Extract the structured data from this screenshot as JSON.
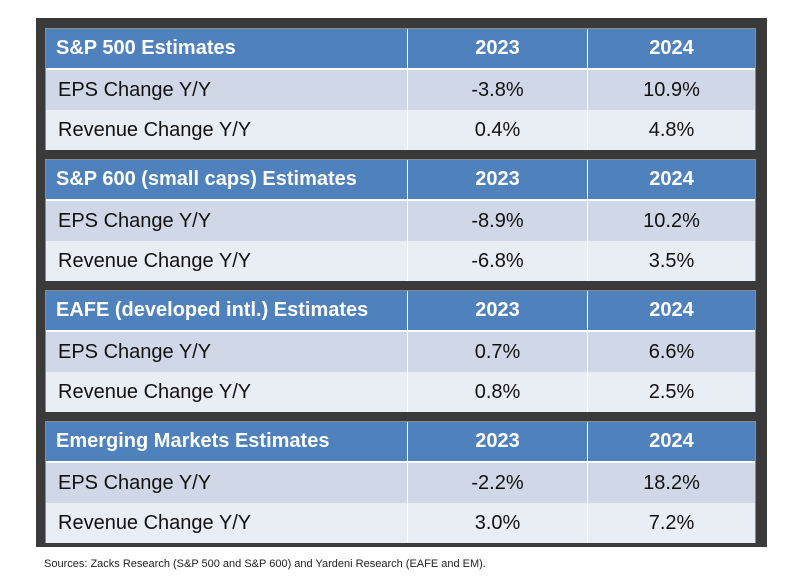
{
  "chart_data": {
    "type": "table",
    "columns": [
      "2023",
      "2024"
    ],
    "tables": [
      {
        "title": "S&P 500 Estimates",
        "rows": [
          {
            "label": "EPS Change Y/Y",
            "values": [
              "-3.8%",
              "10.9%"
            ]
          },
          {
            "label": "Revenue Change Y/Y",
            "values": [
              "0.4%",
              "4.8%"
            ]
          }
        ]
      },
      {
        "title": "S&P 600 (small caps) Estimates",
        "rows": [
          {
            "label": "EPS Change Y/Y",
            "values": [
              "-8.9%",
              "10.2%"
            ]
          },
          {
            "label": "Revenue Change Y/Y",
            "values": [
              "-6.8%",
              "3.5%"
            ]
          }
        ]
      },
      {
        "title": "EAFE (developed intl.) Estimates",
        "rows": [
          {
            "label": "EPS Change Y/Y",
            "values": [
              "0.7%",
              "6.6%"
            ]
          },
          {
            "label": "Revenue Change Y/Y",
            "values": [
              "0.8%",
              "2.5%"
            ]
          }
        ]
      },
      {
        "title": "Emerging Markets Estimates",
        "rows": [
          {
            "label": "EPS Change Y/Y",
            "values": [
              "-2.2%",
              "18.2%"
            ]
          },
          {
            "label": "Revenue Change Y/Y",
            "values": [
              "3.0%",
              "7.2%"
            ]
          }
        ]
      }
    ],
    "source": "Sources: Zacks Research (S&P 500 and S&P 600) and Yardeni Research (EAFE and EM)."
  },
  "colors": {
    "header_bg": "#4f81bd",
    "row_odd_bg": "#d0d8e8",
    "row_even_bg": "#e9edf4",
    "frame": "#3a3a3a"
  }
}
